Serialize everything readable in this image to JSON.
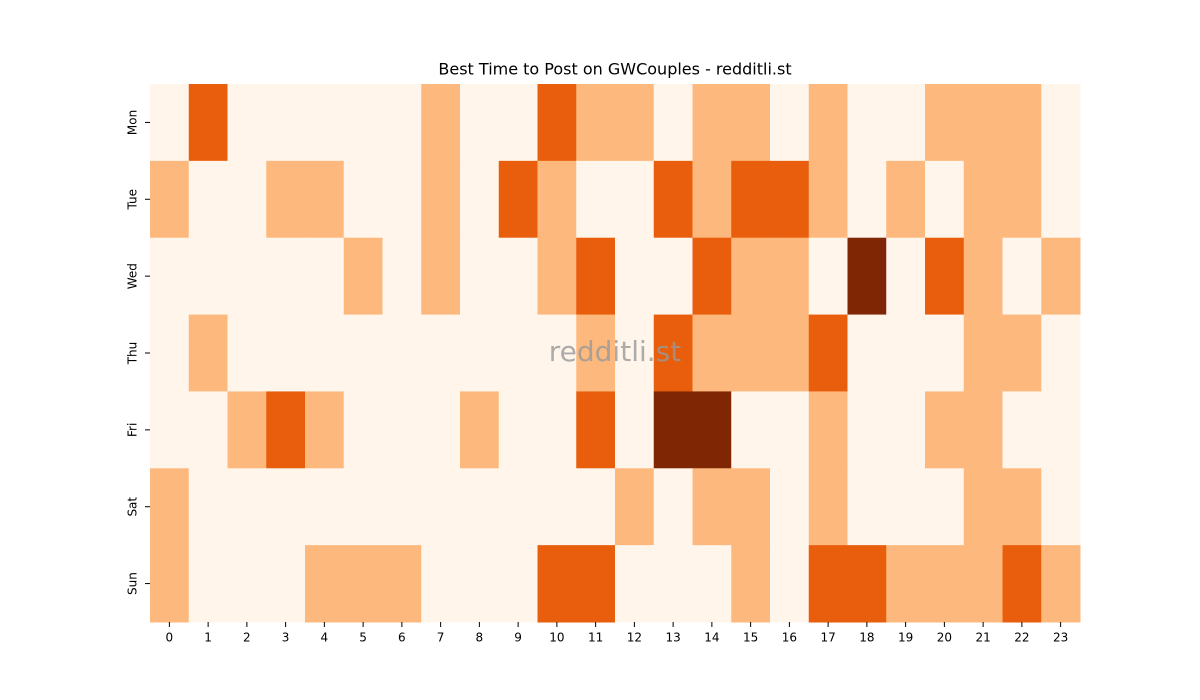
{
  "chart_data": {
    "type": "heatmap",
    "title": "Best Time to Post on GWCouples - redditli.st",
    "watermark": "redditli.st",
    "x": [
      0,
      1,
      2,
      3,
      4,
      5,
      6,
      7,
      8,
      9,
      10,
      11,
      12,
      13,
      14,
      15,
      16,
      17,
      18,
      19,
      20,
      21,
      22,
      23
    ],
    "y": [
      "Mon",
      "Tue",
      "Wed",
      "Thu",
      "Fri",
      "Sat",
      "Sun"
    ],
    "values": [
      [
        0,
        2,
        0,
        0,
        0,
        0,
        0,
        1,
        0,
        0,
        2,
        1,
        1,
        0,
        1,
        1,
        0,
        1,
        0,
        0,
        1,
        1,
        1,
        0
      ],
      [
        1,
        0,
        0,
        1,
        1,
        0,
        0,
        1,
        0,
        2,
        1,
        0,
        0,
        2,
        1,
        2,
        2,
        1,
        0,
        1,
        0,
        1,
        1,
        0
      ],
      [
        0,
        0,
        0,
        0,
        0,
        1,
        0,
        1,
        0,
        0,
        1,
        2,
        0,
        0,
        2,
        1,
        1,
        0,
        3,
        0,
        2,
        1,
        0,
        1
      ],
      [
        0,
        1,
        0,
        0,
        0,
        0,
        0,
        0,
        0,
        0,
        0,
        1,
        0,
        2,
        1,
        1,
        1,
        2,
        0,
        0,
        0,
        1,
        1,
        0
      ],
      [
        0,
        0,
        1,
        2,
        1,
        0,
        0,
        0,
        1,
        0,
        0,
        2,
        0,
        3,
        3,
        0,
        0,
        1,
        0,
        0,
        1,
        1,
        0,
        0
      ],
      [
        1,
        0,
        0,
        0,
        0,
        0,
        0,
        0,
        0,
        0,
        0,
        0,
        1,
        0,
        1,
        1,
        0,
        1,
        0,
        0,
        0,
        1,
        1,
        0
      ],
      [
        1,
        0,
        0,
        0,
        1,
        1,
        1,
        0,
        0,
        0,
        2,
        2,
        0,
        0,
        0,
        1,
        0,
        2,
        2,
        1,
        1,
        1,
        2,
        1
      ]
    ],
    "colormap": [
      "#fff5eb",
      "#fdb97d",
      "#e95e0d",
      "#7f2704"
    ],
    "vlim": [
      0,
      3
    ]
  }
}
